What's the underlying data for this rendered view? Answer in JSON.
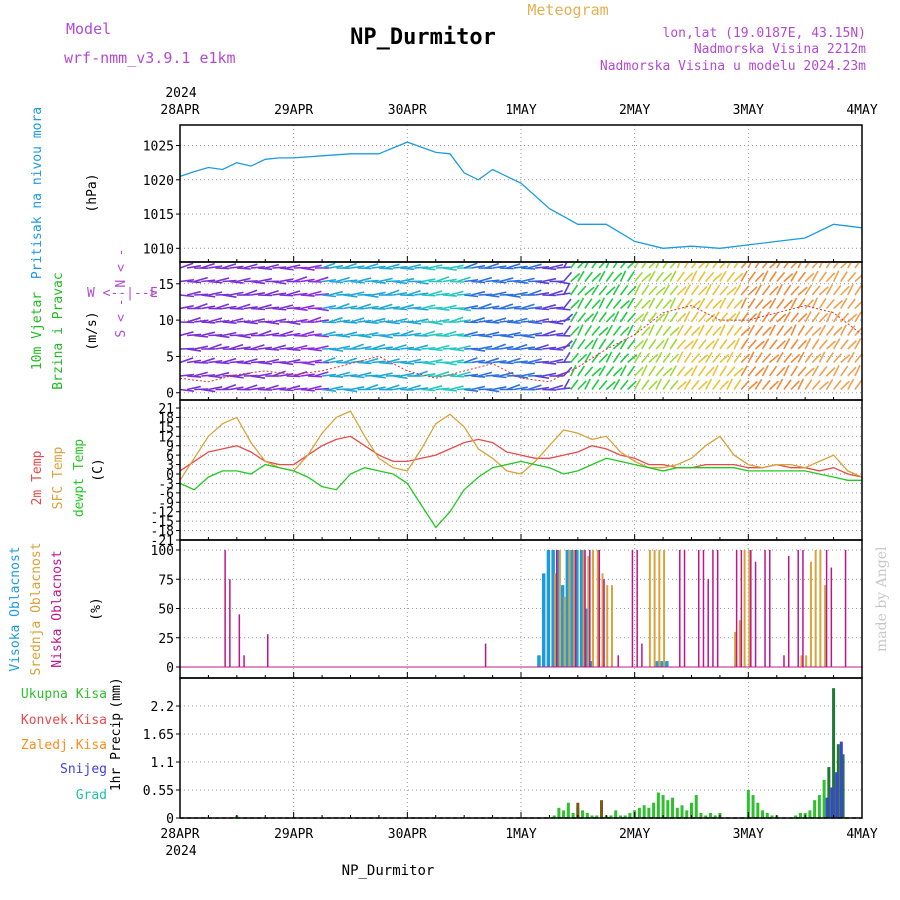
{
  "header": {
    "model_label": "Model",
    "model_name": "wrf-nmm_v3.9.1 e1km",
    "title": "NP_Durmitor",
    "product": "Meteogram",
    "coords": "lon,lat (19.0187E, 43.15N)",
    "elevation": "Nadmorska Visina 2212m",
    "model_elevation": "Nadmorska Visina u modelu 2024.23m",
    "footer_station": "NP_Durmitor",
    "credit": "made by Angel"
  },
  "time_axis": {
    "year": "2024",
    "labels": [
      "28APR",
      "29APR",
      "30APR",
      "1MAY",
      "2MAY",
      "3MAY",
      "4MAY"
    ],
    "hours_total": 144
  },
  "colors": {
    "pressure": "#1e9be0",
    "wind_label": "#22bb22",
    "temp2m": "#e84a4a",
    "sfc_temp": "#d9a23a",
    "dewpoint": "#22c922",
    "high_cloud": "#1e9be0",
    "mid_cloud": "#d9a23a",
    "low_cloud": "#c0148c",
    "purple_text": "#b44ad4",
    "meteogram": "#e6b050",
    "total_precip": "#2fbf2f",
    "conv_precip": "#e84a4a",
    "frz_precip": "#ff8c1a",
    "snow": "#4040e0",
    "graupel": "#20c0a0"
  },
  "chart_data": [
    {
      "type": "line",
      "title": "",
      "ylabel": "Pritisak na nivou mora",
      "units": "(hPa)",
      "ylim": [
        1008,
        1028
      ],
      "yticks": [
        "1010",
        "1015",
        "1020",
        "1025"
      ],
      "grid": true,
      "series": [
        {
          "x": [
            0,
            3,
            6,
            9,
            12,
            15,
            18,
            21,
            24,
            30,
            36,
            42,
            48,
            54,
            57,
            60,
            63,
            66,
            72,
            78,
            84,
            90,
            96,
            102,
            108,
            114,
            120,
            126,
            132,
            138,
            144
          ],
          "values": [
            1020.5,
            1021.2,
            1021.8,
            1021.5,
            1022.5,
            1022.0,
            1023.0,
            1023.2,
            1023.2,
            1023.5,
            1023.8,
            1023.8,
            1025.5,
            1024.0,
            1023.8,
            1021.0,
            1020.0,
            1021.5,
            1019.5,
            1015.8,
            1013.5,
            1013.5,
            1011.0,
            1010.0,
            1010.3,
            1010.0,
            1010.5,
            1011.0,
            1011.5,
            1013.5,
            1013.0
          ]
        }
      ]
    },
    {
      "type": "line",
      "title": "",
      "ylabel": "10m Vjetar Brzina i Pravac",
      "units": "(m/s)",
      "compass": [
        "N",
        "W",
        "E",
        "S"
      ],
      "ylim": [
        -1,
        18
      ],
      "yticks": [
        "0",
        "5",
        "10",
        "15"
      ],
      "grid": true,
      "series": [
        {
          "name": "wind speed",
          "x": [
            0,
            6,
            12,
            18,
            24,
            30,
            36,
            42,
            48,
            54,
            60,
            66,
            72,
            78,
            84,
            90,
            96,
            102,
            108,
            114,
            120,
            126,
            132,
            138,
            144
          ],
          "values": [
            2,
            1.5,
            2.5,
            3,
            2.5,
            3,
            4,
            5,
            3,
            2,
            3,
            4,
            2,
            1.5,
            3.5,
            6,
            8,
            11,
            12,
            10,
            10,
            11,
            12,
            11,
            8
          ]
        }
      ]
    },
    {
      "type": "line",
      "title": "",
      "ylabel": [
        "2m Temp",
        "SFC Temp",
        "dewpt Temp"
      ],
      "units": "(C)",
      "ylim": [
        -21,
        21
      ],
      "yticks": [
        "21",
        "18",
        "15",
        "12",
        "9",
        "6",
        "3",
        "0",
        "-3",
        "-6",
        "-9",
        "-12",
        "-15",
        "-18",
        "-21"
      ],
      "grid": true,
      "series": [
        {
          "name": "2m Temp",
          "x": [
            0,
            3,
            6,
            9,
            12,
            15,
            18,
            21,
            24,
            27,
            30,
            33,
            36,
            39,
            42,
            45,
            48,
            51,
            54,
            57,
            60,
            63,
            66,
            69,
            72,
            75,
            78,
            81,
            84,
            87,
            90,
            93,
            96,
            99,
            102,
            105,
            108,
            111,
            114,
            117,
            120,
            123,
            126,
            129,
            132,
            135,
            138,
            141,
            144
          ],
          "values": [
            1,
            4,
            7,
            8,
            9,
            7,
            4,
            3,
            3,
            6,
            9,
            11,
            12,
            9,
            6,
            4,
            4,
            5,
            6,
            8,
            10,
            11,
            10,
            7,
            6,
            5,
            5,
            6,
            7,
            9,
            8,
            6,
            5,
            3,
            3,
            2,
            2,
            3,
            3,
            3,
            2,
            2,
            3,
            2,
            2,
            1,
            2,
            0,
            -1
          ]
        },
        {
          "name": "SFC Temp",
          "x": [
            0,
            3,
            6,
            9,
            12,
            15,
            18,
            21,
            24,
            27,
            30,
            33,
            36,
            39,
            42,
            45,
            48,
            51,
            54,
            57,
            60,
            63,
            66,
            69,
            72,
            75,
            78,
            81,
            84,
            87,
            90,
            93,
            96,
            99,
            102,
            105,
            108,
            111,
            114,
            117,
            120,
            123,
            126,
            129,
            132,
            135,
            138,
            141,
            144
          ],
          "values": [
            -2,
            5,
            12,
            16,
            18,
            10,
            4,
            2,
            1,
            6,
            13,
            18,
            20,
            12,
            5,
            2,
            1,
            8,
            16,
            19,
            15,
            8,
            5,
            1,
            0,
            4,
            9,
            14,
            13,
            11,
            12,
            7,
            4,
            2,
            2,
            3,
            5,
            9,
            12,
            6,
            3,
            2,
            3,
            3,
            2,
            4,
            6,
            1,
            -1
          ]
        },
        {
          "name": "dewpt Temp",
          "x": [
            0,
            3,
            6,
            9,
            12,
            15,
            18,
            21,
            24,
            27,
            30,
            33,
            36,
            39,
            42,
            45,
            48,
            51,
            54,
            57,
            60,
            63,
            66,
            69,
            72,
            75,
            78,
            81,
            84,
            87,
            90,
            93,
            96,
            99,
            102,
            105,
            108,
            111,
            114,
            117,
            120,
            123,
            126,
            129,
            132,
            135,
            138,
            141,
            144
          ],
          "values": [
            -3,
            -5,
            -1,
            1,
            1,
            0,
            3,
            2,
            1,
            -1,
            -4,
            -5,
            0,
            2,
            1,
            0,
            -3,
            -10,
            -17,
            -12,
            -5,
            -1,
            2,
            3,
            4,
            3,
            2,
            0,
            1,
            3,
            5,
            4,
            3,
            2,
            1,
            2,
            2,
            2,
            2,
            2,
            1,
            1,
            1,
            1,
            1,
            0,
            -1,
            -2,
            -2
          ]
        }
      ]
    },
    {
      "type": "bar",
      "title": "",
      "ylabel": [
        "Visoka Oblacnost",
        "Srednja Oblacnost",
        "Niska Oblacnost"
      ],
      "units": "(%)",
      "ylim": [
        0,
        100
      ],
      "yticks": [
        "0",
        "25",
        "50",
        "75",
        "100"
      ],
      "grid": true,
      "series": [
        {
          "name": "Visoka Oblacnost",
          "x": [
            76,
            77,
            78,
            79,
            80,
            81,
            82,
            83,
            84,
            85,
            86,
            87,
            101,
            102,
            103
          ],
          "values": [
            10,
            80,
            100,
            100,
            100,
            70,
            100,
            100,
            100,
            100,
            50,
            5,
            5,
            5,
            5
          ]
        },
        {
          "name": "Srednja Oblacnost",
          "x": [
            79,
            80,
            81,
            82,
            83,
            85,
            86,
            87,
            88,
            89,
            90,
            91,
            99,
            100,
            101,
            102,
            117,
            118,
            119,
            120,
            131,
            132,
            133,
            134,
            135,
            136
          ],
          "values": [
            80,
            100,
            60,
            100,
            100,
            100,
            95,
            100,
            100,
            80,
            70,
            70,
            100,
            100,
            100,
            100,
            30,
            40,
            100,
            100,
            10,
            10,
            90,
            100,
            100,
            70
          ]
        },
        {
          "name": "Niska Oblacnost",
          "x": [
            9,
            10,
            12,
            13,
            18,
            64,
            79,
            83,
            85,
            86,
            88,
            89,
            92,
            95,
            96,
            97,
            105,
            106,
            109,
            110,
            111,
            112,
            113,
            117,
            118,
            120,
            121,
            123,
            124,
            127,
            128,
            130,
            131,
            136,
            137,
            140
          ],
          "values": [
            100,
            75,
            45,
            10,
            28,
            20,
            100,
            100,
            100,
            100,
            100,
            75,
            10,
            100,
            100,
            20,
            100,
            100,
            100,
            100,
            75,
            100,
            100,
            100,
            100,
            100,
            90,
            100,
            100,
            10,
            95,
            100,
            100,
            100,
            85,
            100
          ]
        }
      ]
    },
    {
      "type": "bar",
      "title": "",
      "ylabel": "1hr Precip",
      "units": "(mm)",
      "ylim": [
        0,
        2.75
      ],
      "yticks": [
        "0",
        "0.55",
        "1.1",
        "1.65",
        "2.2"
      ],
      "grid": true,
      "legend": [
        "Ukupna Kisa",
        "Konvek.Kisa",
        "Zaledj.Kisa",
        "Snijeg",
        "Grad"
      ],
      "series": [
        {
          "name": "Ukupna Kisa",
          "x": [
            12,
            79,
            80,
            81,
            82,
            83,
            84,
            85,
            86,
            87,
            88,
            89,
            90,
            91,
            92,
            93,
            94,
            95,
            96,
            97,
            98,
            99,
            100,
            101,
            102,
            103,
            104,
            105,
            106,
            107,
            108,
            109,
            110,
            111,
            112,
            113,
            114,
            120,
            121,
            122,
            123,
            124,
            125,
            126,
            130,
            131,
            132,
            133,
            134,
            135,
            136,
            137,
            138,
            139,
            140
          ],
          "values": [
            0.05,
            0.05,
            0.2,
            0.15,
            0.3,
            0.1,
            0.2,
            0.15,
            0.1,
            0.05,
            0.05,
            0.1,
            0.05,
            0.05,
            0.15,
            0.05,
            0.05,
            0.1,
            0.15,
            0.2,
            0.25,
            0.2,
            0.3,
            0.5,
            0.45,
            0.35,
            0.4,
            0.2,
            0.25,
            0.15,
            0.3,
            0.45,
            0.1,
            0.05,
            0.1,
            0.05,
            0.1,
            0.55,
            0.45,
            0.3,
            0.15,
            0.1,
            0.05,
            0.05,
            0.05,
            0.1,
            0.1,
            0.15,
            0.35,
            0.45,
            0.75,
            1.0,
            2.55,
            1.45,
            1.25
          ]
        },
        {
          "name": "Snijeg",
          "x": [
            136,
            137,
            138,
            139
          ],
          "values": [
            0.4,
            0.6,
            0.9,
            1.5
          ]
        },
        {
          "name": "Konvek.Kisa",
          "x": [
            84,
            89
          ],
          "values": [
            0.3,
            0.35
          ]
        }
      ]
    }
  ]
}
